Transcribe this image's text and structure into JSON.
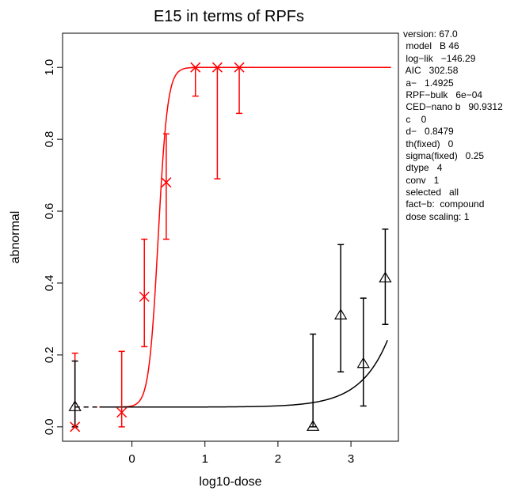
{
  "chart_data": {
    "type": "scatter",
    "title": "E15 in terms of RPFs",
    "xlabel": "log10-dose",
    "ylabel": "abnormal",
    "xlim": [
      -0.95,
      3.65
    ],
    "ylim": [
      -0.04,
      1.095
    ],
    "x_ticks": [
      0,
      1,
      2,
      3
    ],
    "y_ticks": [
      0.0,
      0.2,
      0.4,
      0.6,
      0.8,
      1.0
    ],
    "x_tick_labels": [
      "0",
      "1",
      "2",
      "3"
    ],
    "y_tick_labels": [
      "0.0",
      "0.2",
      "0.4",
      "0.6",
      "0.8",
      "1.0"
    ],
    "grid": false,
    "series": [
      {
        "marker": "x",
        "color": "#ff0000",
        "points": [
          {
            "x": -0.78,
            "y": 0.0,
            "lo": 0.0,
            "hi": 0.205
          },
          {
            "x": -0.14,
            "y": 0.04,
            "lo": 0.0,
            "hi": 0.21
          },
          {
            "x": 0.17,
            "y": 0.362,
            "lo": 0.223,
            "hi": 0.522
          },
          {
            "x": 0.47,
            "y": 0.68,
            "lo": 0.522,
            "hi": 0.815
          },
          {
            "x": 0.87,
            "y": 1.0,
            "lo": 0.92,
            "hi": 1.0
          },
          {
            "x": 1.17,
            "y": 1.0,
            "lo": 0.69,
            "hi": 1.0
          },
          {
            "x": 1.47,
            "y": 1.0,
            "lo": 0.872,
            "hi": 1.0
          }
        ]
      },
      {
        "marker": "triangle",
        "color": "#000000",
        "points": [
          {
            "x": -0.78,
            "y": 0.055,
            "lo": 0.0,
            "hi": 0.183
          },
          {
            "x": 2.48,
            "y": 0.0,
            "lo": 0.0,
            "hi": 0.258
          },
          {
            "x": 2.86,
            "y": 0.31,
            "lo": 0.153,
            "hi": 0.507
          },
          {
            "x": 3.17,
            "y": 0.175,
            "lo": 0.058,
            "hi": 0.358
          },
          {
            "x": 3.47,
            "y": 0.413,
            "lo": 0.285,
            "hi": 0.55
          }
        ]
      }
    ],
    "curves": [
      {
        "color": "#ff0000",
        "model": "loglogistic",
        "c": 0,
        "d": 0.8479,
        "a": 1.4925,
        "b": 90.9312,
        "rpf": 0.0006,
        "x_from": -0.78,
        "x_to": 3.55,
        "dashed_before": -0.45
      },
      {
        "color": "#000000",
        "model": "loglogistic",
        "c": 0,
        "d": 0.8479,
        "a": 1.4925,
        "b": 90.9312,
        "rpf": 1,
        "x_from": -0.78,
        "x_to": 3.5,
        "dashed_before": -0.45
      }
    ]
  },
  "info_lines": [
    "version: 67.0",
    " model   B 46",
    " log−lik   −146.29",
    " AIC   302.58",
    " a−   1.4925",
    " RPF−bulk   6e−04",
    " CED−nano b   90.9312",
    " c    0",
    " d−   0.8479",
    " th(fixed)   0",
    " sigma(fixed)   0.25",
    " dtype   4",
    " conv   1",
    " selected   all",
    " fact−b:  compound",
    " dose scaling: 1"
  ]
}
